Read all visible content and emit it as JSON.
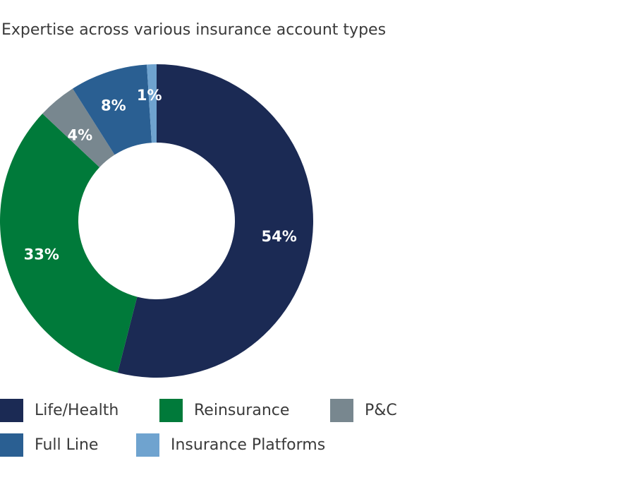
{
  "title": "Expertise across various insurance account types",
  "chart_data": {
    "type": "pie",
    "variant": "donut",
    "title": "Expertise across various insurance account types",
    "categories": [
      "Life/Health",
      "Reinsurance",
      "P&C",
      "Full Line",
      "Insurance Platforms"
    ],
    "values": [
      54,
      33,
      4,
      8,
      1
    ],
    "labels": [
      "54%",
      "33%",
      "4%",
      "8%",
      "1%"
    ],
    "colors": [
      "#1b2a54",
      "#007a3a",
      "#78878f",
      "#2a5f92",
      "#6fa3cf"
    ],
    "legend_placement": "bottom"
  },
  "legend": [
    {
      "label": "Life/Health",
      "color": "#1b2a54"
    },
    {
      "label": "Reinsurance",
      "color": "#007a3a"
    },
    {
      "label": "P&C",
      "color": "#78878f"
    },
    {
      "label": "Full Line",
      "color": "#2a5f92"
    },
    {
      "label": "Insurance Platforms",
      "color": "#6fa3cf"
    }
  ]
}
